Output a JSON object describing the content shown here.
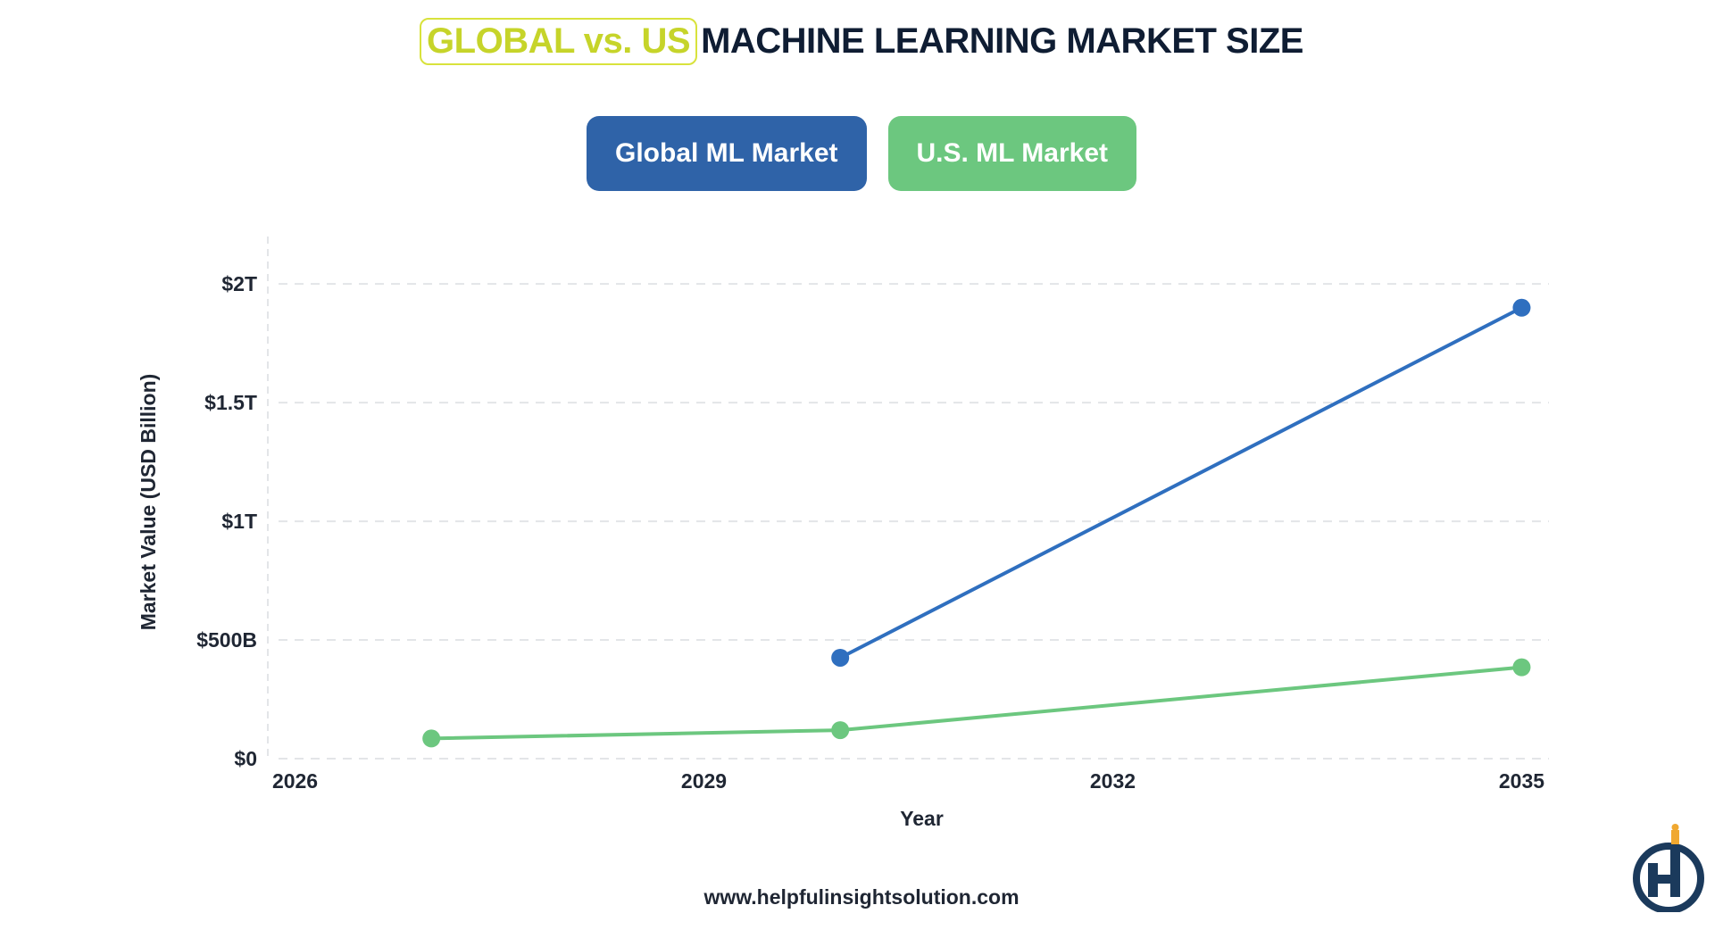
{
  "title": {
    "highlight": "GLOBAL vs. US",
    "main": "MACHINE LEARNING MARKET SIZE"
  },
  "footer": {
    "website": "www.helpfulinsightsolution.com"
  },
  "colors": {
    "global": "#2f6fbf",
    "us": "#6cc77f",
    "highlight": "#c6d42a",
    "legend_global_bg": "#2f63a8",
    "legend_us_bg": "#6cc77f",
    "logo_navy": "#1b3a5c",
    "logo_accent": "#f0a830"
  },
  "icons": {
    "logo": "hi-logo-icon"
  },
  "chart_data": {
    "type": "line",
    "title": "GLOBAL vs. US MACHINE LEARNING MARKET SIZE",
    "xlabel": "Year",
    "ylabel": "Market Value (USD Billion)",
    "xlim": [
      2025.8,
      2035.2
    ],
    "ylim": [
      0,
      2200
    ],
    "x_ticks": [
      2026,
      2029,
      2032,
      2035
    ],
    "x_tick_labels": [
      "2026",
      "2029",
      "2032",
      "2035"
    ],
    "y_ticks": [
      0,
      500,
      1000,
      1500,
      2000
    ],
    "y_tick_labels": [
      "$0",
      "$500B",
      "$1T",
      "$1.5T",
      "$2T"
    ],
    "grid": true,
    "legend_position": "top-center",
    "series": [
      {
        "name": "Global ML Market",
        "color": "#2f6fbf",
        "points": [
          {
            "x": 2030,
            "y": 425
          },
          {
            "x": 2035,
            "y": 1900
          }
        ]
      },
      {
        "name": "U.S. ML Market",
        "color": "#6cc77f",
        "points": [
          {
            "x": 2027,
            "y": 85
          },
          {
            "x": 2030,
            "y": 120
          },
          {
            "x": 2035,
            "y": 385
          }
        ]
      }
    ]
  }
}
